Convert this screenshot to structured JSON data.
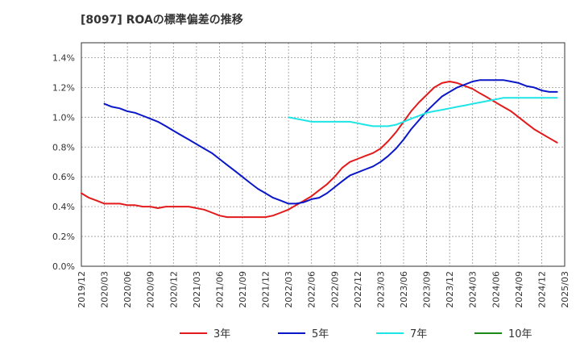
{
  "chart_data": {
    "type": "line",
    "title": "[8097]  ROAの標準偏差の推移",
    "xlabel": "",
    "ylabel": "",
    "ylim": [
      0,
      1.5
    ],
    "yticks": [
      "0.0%",
      "0.2%",
      "0.4%",
      "0.6%",
      "0.8%",
      "1.0%",
      "1.2%",
      "1.4%"
    ],
    "ytick_values": [
      0,
      0.2,
      0.4,
      0.6,
      0.8,
      1.0,
      1.2,
      1.4
    ],
    "x_categories": [
      "2019/12",
      "2020/03",
      "2020/06",
      "2020/09",
      "2020/12",
      "2021/03",
      "2021/06",
      "2021/09",
      "2021/12",
      "2022/03",
      "2022/06",
      "2022/09",
      "2022/12",
      "2023/03",
      "2023/06",
      "2023/09",
      "2023/12",
      "2024/03",
      "2024/06",
      "2024/09",
      "2024/12",
      "2025/03"
    ],
    "grid": true,
    "legend_position": "bottom",
    "series": [
      {
        "name": "3年",
        "color": "#e31a1c",
        "points": [
          [
            0,
            0.49
          ],
          [
            0.33,
            0.46
          ],
          [
            0.67,
            0.44
          ],
          [
            1,
            0.42
          ],
          [
            1.33,
            0.42
          ],
          [
            1.67,
            0.42
          ],
          [
            2,
            0.41
          ],
          [
            2.33,
            0.41
          ],
          [
            2.67,
            0.4
          ],
          [
            3,
            0.4
          ],
          [
            3.33,
            0.39
          ],
          [
            3.67,
            0.4
          ],
          [
            4,
            0.4
          ],
          [
            4.33,
            0.4
          ],
          [
            4.67,
            0.4
          ],
          [
            5,
            0.39
          ],
          [
            5.33,
            0.38
          ],
          [
            5.67,
            0.36
          ],
          [
            6,
            0.34
          ],
          [
            6.33,
            0.33
          ],
          [
            6.67,
            0.33
          ],
          [
            7,
            0.33
          ],
          [
            7.33,
            0.33
          ],
          [
            7.67,
            0.33
          ],
          [
            8,
            0.33
          ],
          [
            8.33,
            0.34
          ],
          [
            8.67,
            0.36
          ],
          [
            9,
            0.38
          ],
          [
            9.33,
            0.41
          ],
          [
            9.67,
            0.44
          ],
          [
            10,
            0.47
          ],
          [
            10.33,
            0.51
          ],
          [
            10.67,
            0.55
          ],
          [
            11,
            0.6
          ],
          [
            11.33,
            0.66
          ],
          [
            11.67,
            0.7
          ],
          [
            12,
            0.72
          ],
          [
            12.33,
            0.74
          ],
          [
            12.67,
            0.76
          ],
          [
            13,
            0.79
          ],
          [
            13.33,
            0.84
          ],
          [
            13.67,
            0.9
          ],
          [
            14,
            0.97
          ],
          [
            14.33,
            1.04
          ],
          [
            14.67,
            1.1
          ],
          [
            15,
            1.15
          ],
          [
            15.33,
            1.2
          ],
          [
            15.67,
            1.23
          ],
          [
            16,
            1.24
          ],
          [
            16.33,
            1.23
          ],
          [
            16.67,
            1.21
          ],
          [
            17,
            1.19
          ],
          [
            17.33,
            1.16
          ],
          [
            17.67,
            1.13
          ],
          [
            18,
            1.1
          ],
          [
            18.33,
            1.07
          ],
          [
            18.67,
            1.04
          ],
          [
            19,
            1.0
          ],
          [
            19.33,
            0.96
          ],
          [
            19.67,
            0.92
          ],
          [
            20,
            0.89
          ],
          [
            20.33,
            0.86
          ],
          [
            20.67,
            0.83
          ]
        ]
      },
      {
        "name": "5年",
        "color": "#0a17c8",
        "points": [
          [
            1,
            1.09
          ],
          [
            1.33,
            1.07
          ],
          [
            1.67,
            1.06
          ],
          [
            2,
            1.04
          ],
          [
            2.33,
            1.03
          ],
          [
            2.67,
            1.01
          ],
          [
            3,
            0.99
          ],
          [
            3.33,
            0.97
          ],
          [
            3.67,
            0.94
          ],
          [
            4,
            0.91
          ],
          [
            4.33,
            0.88
          ],
          [
            4.67,
            0.85
          ],
          [
            5,
            0.82
          ],
          [
            5.33,
            0.79
          ],
          [
            5.67,
            0.76
          ],
          [
            6,
            0.72
          ],
          [
            6.33,
            0.68
          ],
          [
            6.67,
            0.64
          ],
          [
            7,
            0.6
          ],
          [
            7.33,
            0.56
          ],
          [
            7.67,
            0.52
          ],
          [
            8,
            0.49
          ],
          [
            8.33,
            0.46
          ],
          [
            8.67,
            0.44
          ],
          [
            9,
            0.42
          ],
          [
            9.33,
            0.42
          ],
          [
            9.67,
            0.43
          ],
          [
            10,
            0.45
          ],
          [
            10.33,
            0.46
          ],
          [
            10.67,
            0.49
          ],
          [
            11,
            0.53
          ],
          [
            11.33,
            0.57
          ],
          [
            11.67,
            0.61
          ],
          [
            12,
            0.63
          ],
          [
            12.33,
            0.65
          ],
          [
            12.67,
            0.67
          ],
          [
            13,
            0.7
          ],
          [
            13.33,
            0.74
          ],
          [
            13.67,
            0.79
          ],
          [
            14,
            0.85
          ],
          [
            14.33,
            0.92
          ],
          [
            14.67,
            0.98
          ],
          [
            15,
            1.04
          ],
          [
            15.33,
            1.09
          ],
          [
            15.67,
            1.14
          ],
          [
            16,
            1.17
          ],
          [
            16.33,
            1.2
          ],
          [
            16.67,
            1.22
          ],
          [
            17,
            1.24
          ],
          [
            17.33,
            1.25
          ],
          [
            17.67,
            1.25
          ],
          [
            18,
            1.25
          ],
          [
            18.33,
            1.25
          ],
          [
            18.67,
            1.24
          ],
          [
            19,
            1.23
          ],
          [
            19.33,
            1.21
          ],
          [
            19.67,
            1.2
          ],
          [
            20,
            1.18
          ],
          [
            20.33,
            1.17
          ],
          [
            20.67,
            1.17
          ]
        ]
      },
      {
        "name": "7年",
        "color": "#1ee5e5",
        "points": [
          [
            9,
            1.0
          ],
          [
            9.33,
            0.99
          ],
          [
            9.67,
            0.98
          ],
          [
            10,
            0.97
          ],
          [
            10.33,
            0.97
          ],
          [
            10.67,
            0.97
          ],
          [
            11,
            0.97
          ],
          [
            11.33,
            0.97
          ],
          [
            11.67,
            0.97
          ],
          [
            12,
            0.96
          ],
          [
            12.33,
            0.95
          ],
          [
            12.67,
            0.94
          ],
          [
            13,
            0.94
          ],
          [
            13.33,
            0.94
          ],
          [
            13.67,
            0.95
          ],
          [
            14,
            0.97
          ],
          [
            14.33,
            0.99
          ],
          [
            14.67,
            1.01
          ],
          [
            15,
            1.03
          ],
          [
            15.33,
            1.04
          ],
          [
            15.67,
            1.05
          ],
          [
            16,
            1.06
          ],
          [
            16.33,
            1.07
          ],
          [
            16.67,
            1.08
          ],
          [
            17,
            1.09
          ],
          [
            17.33,
            1.1
          ],
          [
            17.67,
            1.11
          ],
          [
            18,
            1.12
          ],
          [
            18.33,
            1.13
          ],
          [
            18.67,
            1.13
          ],
          [
            19,
            1.13
          ],
          [
            19.33,
            1.13
          ],
          [
            19.67,
            1.13
          ],
          [
            20,
            1.13
          ],
          [
            20.33,
            1.13
          ],
          [
            20.67,
            1.13
          ]
        ]
      },
      {
        "name": "10年",
        "color": "#1a8a1a",
        "points": []
      }
    ]
  }
}
